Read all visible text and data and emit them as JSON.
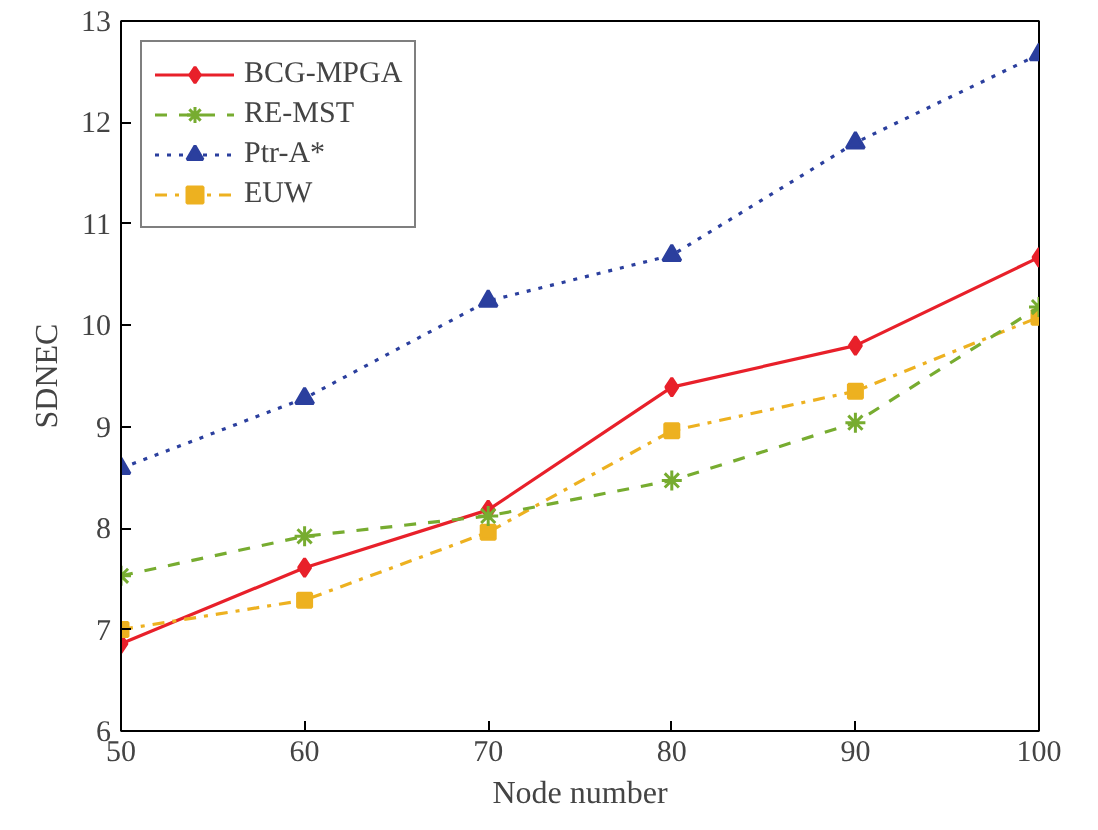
{
  "chart_data": {
    "type": "line",
    "xlabel": "Node number",
    "ylabel": "SDNEC",
    "x": [
      50,
      60,
      70,
      80,
      90,
      100
    ],
    "series": [
      {
        "name": "BCG-MPGA",
        "color": "#e8202a",
        "marker": "diamond",
        "line_style": "solid",
        "values": [
          6.86,
          7.61,
          8.18,
          9.39,
          9.8,
          10.67
        ]
      },
      {
        "name": "RE-MST",
        "color": "#77ac30",
        "marker": "cross",
        "line_style": "dashed",
        "values": [
          7.53,
          7.92,
          8.12,
          8.47,
          9.04,
          10.18
        ]
      },
      {
        "name": "Ptr-A*",
        "color": "#2b3f9e",
        "marker": "triangle",
        "line_style": "dotted",
        "values": [
          8.59,
          9.28,
          10.24,
          10.69,
          11.8,
          12.67
        ]
      },
      {
        "name": "EUW",
        "color": "#edb120",
        "marker": "square",
        "line_style": "dashdot",
        "values": [
          7.0,
          7.29,
          7.96,
          8.96,
          9.35,
          10.08
        ]
      }
    ],
    "xlim": [
      50,
      100
    ],
    "xticks": [
      50,
      60,
      70,
      80,
      90,
      100
    ],
    "ylim": [
      6,
      13
    ],
    "yticks": [
      6,
      7,
      8,
      9,
      10,
      11,
      12,
      13
    ],
    "grid": false,
    "legend": "top left"
  }
}
